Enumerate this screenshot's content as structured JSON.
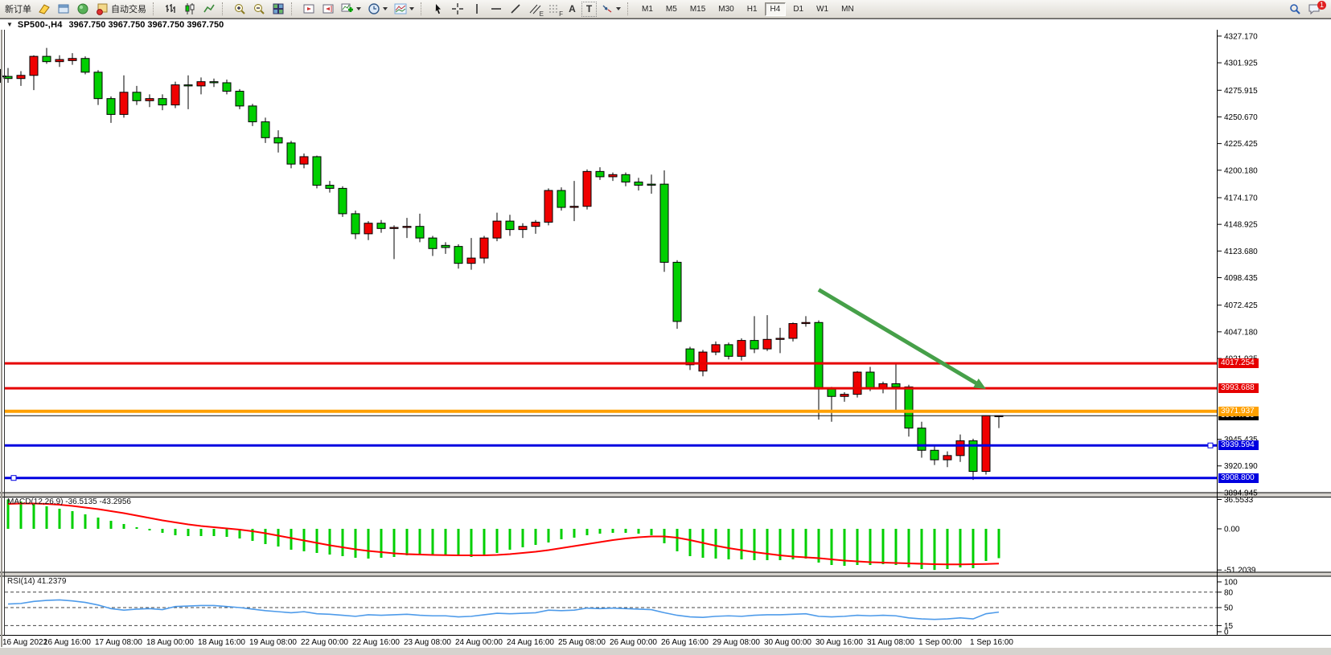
{
  "toolbar": {
    "new_order_label": "新订单",
    "autotrading_label": "自动交易",
    "tool_letters": {
      "text": "A",
      "label": "T",
      "channel": "E",
      "fib": "F"
    },
    "timeframes": [
      "M1",
      "M5",
      "M15",
      "M30",
      "H1",
      "H4",
      "D1",
      "W1",
      "MN"
    ],
    "active_timeframe": "H4",
    "notification_count": "1"
  },
  "chart": {
    "collapse_arrow": "▼",
    "symbol_period": "SP500-,H4",
    "ohlc_text": "3967.750 3967.750 3967.750 3967.750"
  },
  "price_axis": {
    "ticks": [
      "4327.170",
      "4301.925",
      "4275.915",
      "4250.670",
      "4225.425",
      "4200.180",
      "4174.170",
      "4148.925",
      "4123.680",
      "4098.435",
      "4072.425",
      "4047.180",
      "4021.935",
      "3945.435",
      "3920.190",
      "3894.945"
    ],
    "badges": [
      {
        "text": "4017.254",
        "price": 4017.254,
        "color": "#E60000"
      },
      {
        "text": "3993.688",
        "price": 3993.688,
        "color": "#E60000"
      },
      {
        "text": "3967.750",
        "price": 3967.75,
        "color": "#000000"
      },
      {
        "text": "3971.937",
        "price": 3971.937,
        "color": "#FFA000"
      },
      {
        "text": "3939.594",
        "price": 3939.594,
        "color": "#0000E0"
      },
      {
        "text": "3908.800",
        "price": 3908.8,
        "color": "#0000E0"
      }
    ]
  },
  "time_axis": {
    "labels": [
      "16 Aug 2022",
      "16 Aug 16:00",
      "17 Aug 08:00",
      "18 Aug 00:00",
      "18 Aug 16:00",
      "19 Aug 08:00",
      "22 Aug 00:00",
      "22 Aug 16:00",
      "23 Aug 08:00",
      "24 Aug 00:00",
      "24 Aug 16:00",
      "25 Aug 08:00",
      "26 Aug 00:00",
      "26 Aug 16:00",
      "29 Aug 08:00",
      "30 Aug 00:00",
      "30 Aug 16:00",
      "31 Aug 08:00",
      "1 Sep 00:00",
      "1 Sep 16:00"
    ]
  },
  "indicators": {
    "macd": {
      "label": "MACD(12,26,9) -36.5135 -43.2956",
      "axis": [
        "36.5533",
        "0.00",
        "-51.2039"
      ]
    },
    "rsi": {
      "label": "RSI(14) 41.2379",
      "axis": [
        "100",
        "80",
        "50",
        "15",
        "0"
      ]
    }
  },
  "colors": {
    "up": "#F00000",
    "down": "#00CF00",
    "wick": "#000000",
    "macd_hist": "#00CF00",
    "macd_signal": "#FF0000",
    "rsi_line": "#4E9BEA",
    "arrow": "#46A049",
    "hline_red": "#E60000",
    "hline_orange": "#FFA000",
    "hline_blue": "#0000E0",
    "bid_line": "#111111"
  },
  "chart_data": {
    "type": "candlestick",
    "symbol": "SP500-",
    "period": "H4",
    "current_ohlc": {
      "open": 3967.75,
      "high": 3967.75,
      "low": 3967.75,
      "close": 3967.75
    },
    "price_range": [
      3894.945,
      4327.17
    ],
    "candles": [
      [
        4289,
        4297,
        4283,
        4287
      ],
      [
        4287,
        4294,
        4280,
        4290
      ],
      [
        4290,
        4309,
        4276,
        4308
      ],
      [
        4308,
        4316,
        4301,
        4303
      ],
      [
        4303,
        4309,
        4298,
        4305
      ],
      [
        4304,
        4311,
        4300,
        4306
      ],
      [
        4306,
        4308,
        4291,
        4293
      ],
      [
        4293,
        4295,
        4262,
        4268
      ],
      [
        4268,
        4270,
        4245,
        4253
      ],
      [
        4253,
        4290,
        4250,
        4274
      ],
      [
        4274,
        4280,
        4262,
        4266
      ],
      [
        4266,
        4272,
        4260,
        4268
      ],
      [
        4268,
        4272,
        4257,
        4262
      ],
      [
        4262,
        4284,
        4259,
        4281
      ],
      [
        4281,
        4290,
        4258,
        4280
      ],
      [
        4280,
        4288,
        4272,
        4284
      ],
      [
        4284,
        4287,
        4279,
        4283
      ],
      [
        4283,
        4286,
        4272,
        4275
      ],
      [
        4275,
        4277,
        4258,
        4261
      ],
      [
        4261,
        4263,
        4242,
        4246
      ],
      [
        4246,
        4250,
        4226,
        4231
      ],
      [
        4231,
        4238,
        4217,
        4226
      ],
      [
        4226,
        4228,
        4202,
        4206
      ],
      [
        4206,
        4216,
        4202,
        4213
      ],
      [
        4213,
        4214,
        4183,
        4186
      ],
      [
        4186,
        4190,
        4179,
        4183
      ],
      [
        4183,
        4185,
        4156,
        4159
      ],
      [
        4159,
        4162,
        4135,
        4140
      ],
      [
        4140,
        4152,
        4134,
        4150
      ],
      [
        4150,
        4153,
        4141,
        4145
      ],
      [
        4145,
        4148,
        4116,
        4146
      ],
      [
        4146,
        4155,
        4136,
        4147
      ],
      [
        4147,
        4159,
        4132,
        4136
      ],
      [
        4136,
        4138,
        4119,
        4126
      ],
      [
        4129,
        4132,
        4121,
        4127
      ],
      [
        4128,
        4130,
        4107,
        4112
      ],
      [
        4112,
        4136,
        4106,
        4117
      ],
      [
        4117,
        4138,
        4112,
        4136
      ],
      [
        4136,
        4160,
        4133,
        4152
      ],
      [
        4152,
        4158,
        4138,
        4144
      ],
      [
        4144,
        4150,
        4136,
        4147
      ],
      [
        4147,
        4153,
        4140,
        4151
      ],
      [
        4151,
        4183,
        4148,
        4181
      ],
      [
        4181,
        4184,
        4162,
        4165
      ],
      [
        4165,
        4190,
        4152,
        4166
      ],
      [
        4166,
        4201,
        4163,
        4199
      ],
      [
        4199,
        4203,
        4191,
        4194
      ],
      [
        4194,
        4198,
        4190,
        4196
      ],
      [
        4196,
        4198,
        4185,
        4189
      ],
      [
        4189,
        4193,
        4181,
        4186
      ],
      [
        4187,
        4196,
        4178,
        4186
      ],
      [
        4187,
        4200,
        4104,
        4113
      ],
      [
        4113,
        4115,
        4050,
        4057
      ],
      [
        4031,
        4033,
        4011,
        4016
      ],
      [
        4010,
        4030,
        4005,
        4028
      ],
      [
        4028,
        4038,
        4025,
        4035
      ],
      [
        4035,
        4037,
        4021,
        4024
      ],
      [
        4024,
        4041,
        4020,
        4039
      ],
      [
        4039,
        4062,
        4027,
        4031
      ],
      [
        4031,
        4063,
        4029,
        4040
      ],
      [
        4040,
        4051,
        4027,
        4041
      ],
      [
        4041,
        4056,
        4038,
        4055
      ],
      [
        4055,
        4062,
        4052,
        4056
      ],
      [
        4056,
        4058,
        3964,
        3993
      ],
      [
        3993,
        3995,
        3962,
        3986
      ],
      [
        3986,
        3990,
        3981,
        3988
      ],
      [
        3988,
        4010,
        3985,
        4009
      ],
      [
        4009,
        4014,
        3991,
        3994
      ],
      [
        3994,
        4000,
        3989,
        3998
      ],
      [
        3998,
        4017,
        3973,
        3995
      ],
      [
        3995,
        3997,
        3948,
        3956
      ],
      [
        3956,
        3962,
        3928,
        3935
      ],
      [
        3935,
        3939,
        3921,
        3926
      ],
      [
        3926,
        3934,
        3919,
        3930
      ],
      [
        3930,
        3950,
        3924,
        3944
      ],
      [
        3944,
        3946,
        3907,
        3915
      ],
      [
        3915,
        3968,
        3912,
        3967.75
      ],
      [
        3967.75,
        3967.75,
        3956,
        3967.75
      ]
    ],
    "macd_histogram": [
      36.5,
      34,
      31,
      28,
      25,
      22,
      18,
      14,
      10,
      6,
      2,
      -2,
      -5,
      -8,
      -9,
      -9,
      -9,
      -10,
      -12,
      -15,
      -19,
      -22,
      -26,
      -28,
      -30,
      -32,
      -34,
      -36,
      -37,
      -36,
      -35,
      -33,
      -32,
      -32,
      -33,
      -34,
      -35,
      -33,
      -30,
      -26,
      -23,
      -20,
      -17,
      -13,
      -11,
      -8,
      -6,
      -5,
      -5,
      -6,
      -8,
      -18,
      -28,
      -34,
      -36,
      -37,
      -38,
      -38,
      -39,
      -39,
      -39,
      -38,
      -37,
      -42,
      -45,
      -46,
      -45,
      -45,
      -44,
      -45,
      -48,
      -50,
      -51.2,
      -50,
      -48,
      -49,
      -40,
      -36.51
    ],
    "macd_signal": [
      31,
      31.5,
      31.5,
      31,
      30,
      28.5,
      26.5,
      24.5,
      22,
      19.5,
      16.5,
      13.5,
      10.5,
      8,
      5.5,
      3.5,
      2,
      0.5,
      -1,
      -3,
      -5.5,
      -8.5,
      -11.5,
      -14.5,
      -17.5,
      -20.5,
      -23,
      -25.5,
      -27.5,
      -29,
      -30.5,
      -31.5,
      -32,
      -32.5,
      -32.8,
      -33,
      -33,
      -33,
      -32.5,
      -31.5,
      -30,
      -28.5,
      -26.5,
      -24,
      -21.5,
      -19,
      -16.5,
      -14,
      -12,
      -10.5,
      -9.5,
      -9.5,
      -11,
      -14,
      -17.5,
      -21,
      -24,
      -26.5,
      -29,
      -31,
      -33,
      -34.5,
      -35.5,
      -36.5,
      -38,
      -39.5,
      -40.5,
      -41.5,
      -42,
      -42.5,
      -43,
      -43.5,
      -44,
      -44.2,
      -44.2,
      -44,
      -43.8,
      -43.3
    ],
    "rsi": [
      57,
      58,
      62,
      64,
      65,
      63,
      60,
      55,
      48,
      45,
      47,
      48,
      46,
      52,
      53,
      54,
      54,
      52,
      50,
      47,
      44,
      42,
      40,
      42,
      38,
      37,
      35,
      33,
      36,
      35,
      36,
      37,
      35,
      34,
      34,
      32,
      33,
      36,
      39,
      38,
      39,
      40,
      45,
      44,
      45,
      49,
      48,
      49,
      48,
      47,
      46,
      40,
      35,
      32,
      31,
      33,
      34,
      33,
      35,
      36,
      36,
      37,
      38,
      33,
      32,
      33,
      35,
      34,
      35,
      34,
      30,
      28,
      27,
      28,
      30,
      28,
      38,
      41.24
    ],
    "rsi_levels": [
      80,
      50,
      15
    ],
    "hlines": [
      {
        "price": 4017.254,
        "color": "#E60000",
        "width": 3
      },
      {
        "price": 3993.688,
        "color": "#E60000",
        "width": 3
      },
      {
        "price": 3971.937,
        "color": "#FFA000",
        "width": 4
      },
      {
        "price": 3967.75,
        "color": "#111111",
        "width": 1
      },
      {
        "price": 3939.594,
        "color": "#0000E0",
        "width": 3
      },
      {
        "price": 3908.8,
        "color": "#0000E0",
        "width": 3
      }
    ],
    "annotation": {
      "type": "arrow",
      "bar_start": 63,
      "price_start": 4087,
      "bar_end": 76,
      "price_end": 3993
    }
  }
}
